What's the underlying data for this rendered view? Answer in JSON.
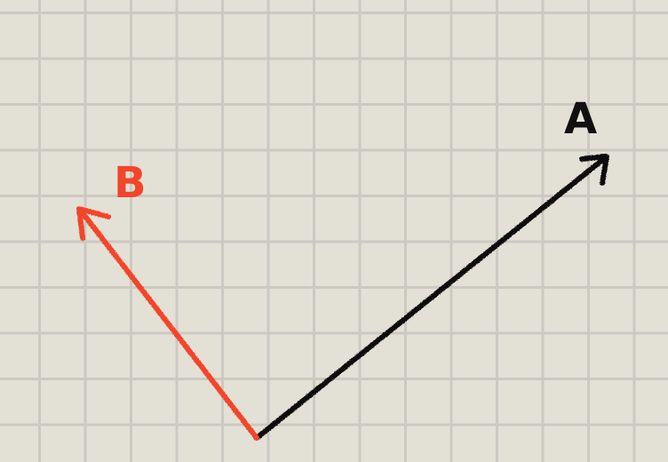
{
  "diagram": {
    "vectors": [
      {
        "id": "A",
        "label": "A",
        "color": "#111111"
      },
      {
        "id": "B",
        "label": "B",
        "color": "#f2452a"
      }
    ]
  }
}
